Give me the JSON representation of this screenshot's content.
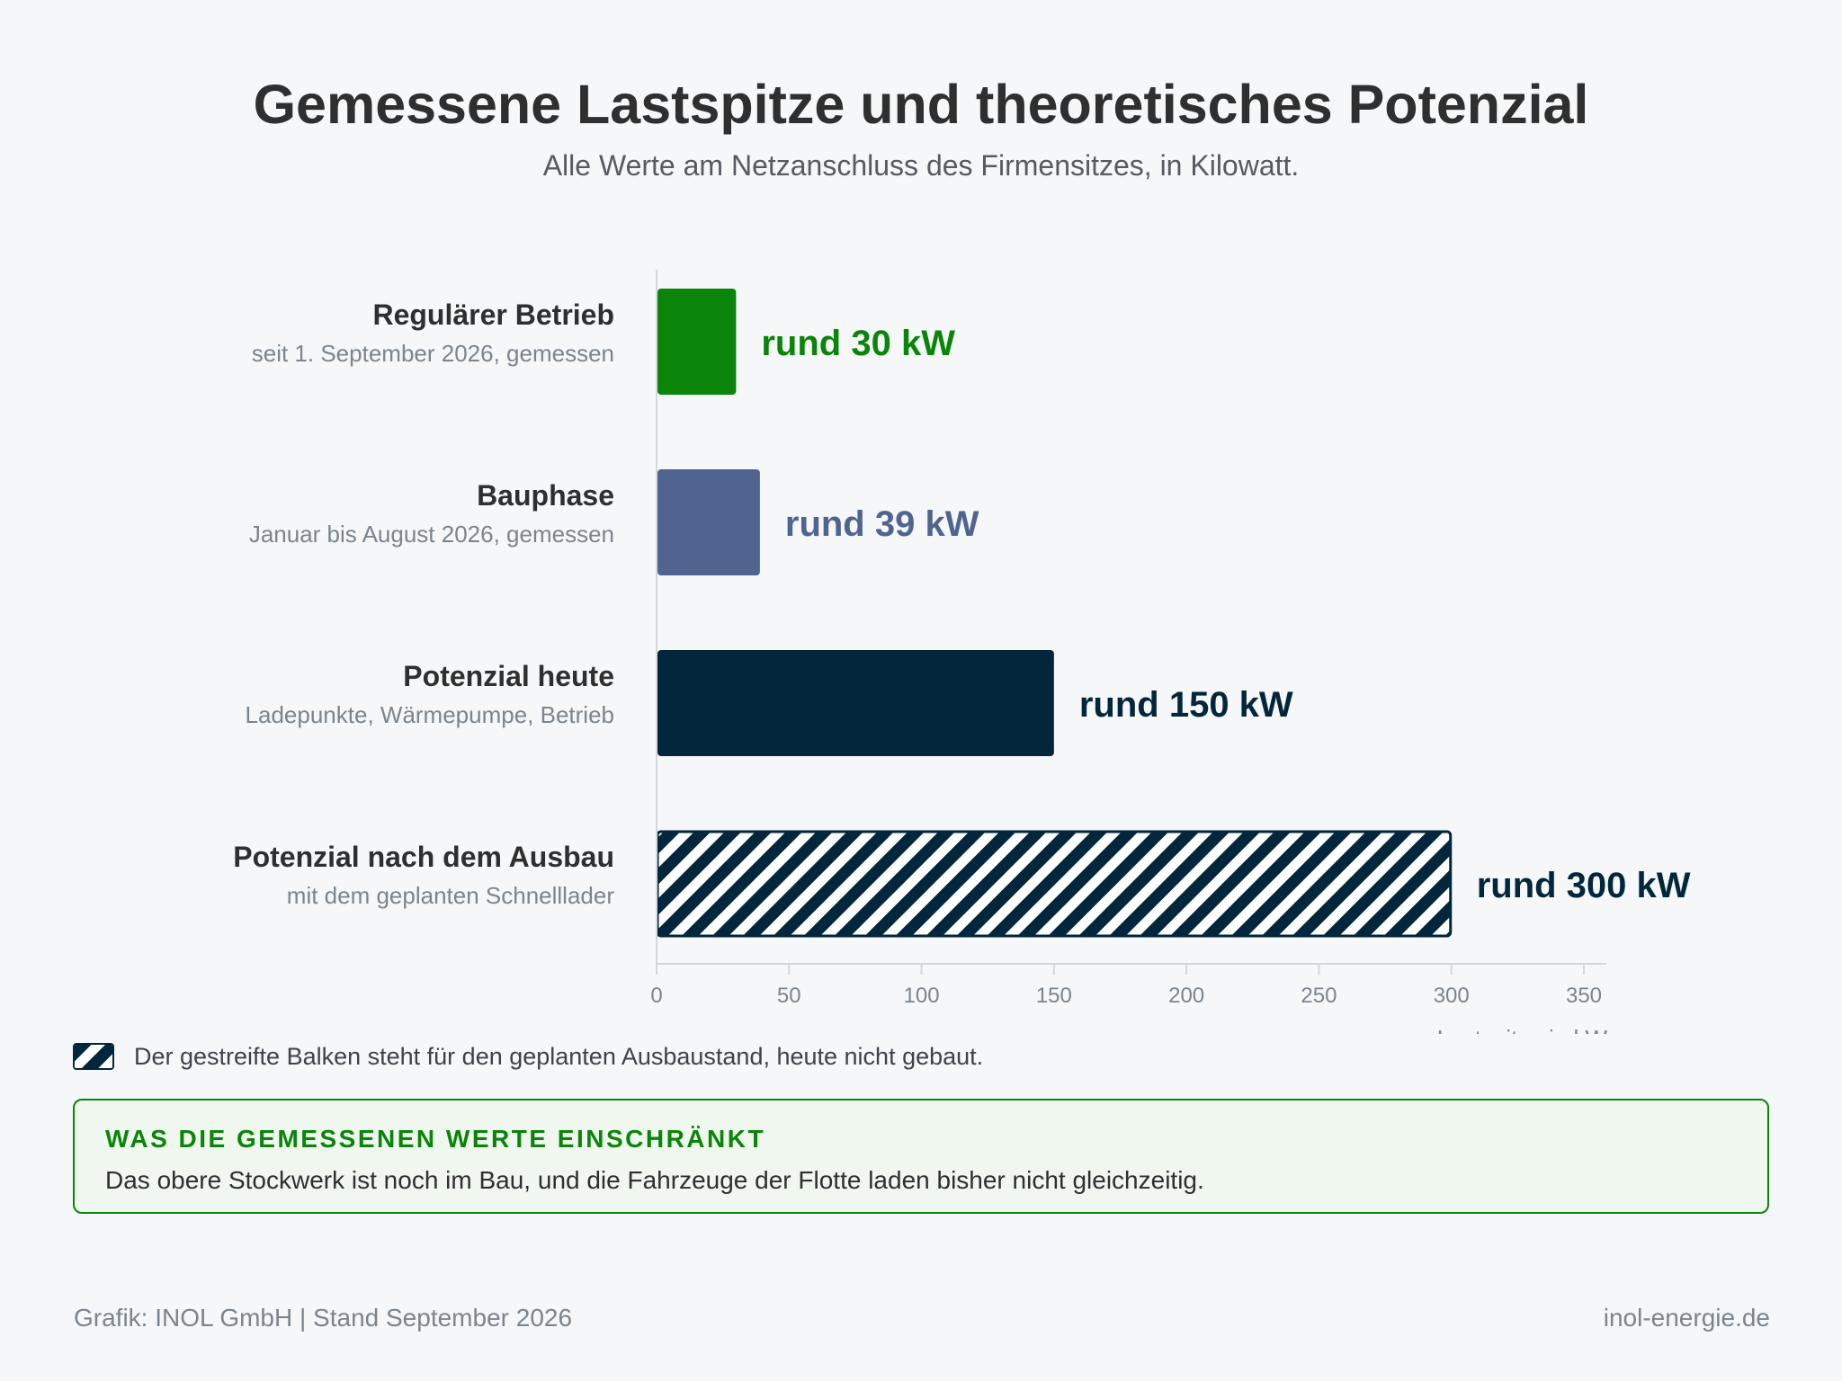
{
  "header": {
    "title": "Gemessene Lastspitze und theoretisches Potenzial",
    "subtitle": "Alle Werte am Netzanschluss des Firmensitzes, in Kilowatt."
  },
  "chart_data": {
    "type": "bar",
    "orientation": "horizontal",
    "categories": [
      "Regulärer Betrieb",
      "Bauphase",
      "Potenzial heute",
      "Potenzial nach dem Ausbau"
    ],
    "category_subtitles": [
      "seit 1. September 2026, gemessen",
      "Januar bis August 2026, gemessen",
      "Ladepunkte, Wärmepumpe, Betrieb",
      "mit dem geplanten Schnelllader"
    ],
    "values": [
      30,
      39,
      150,
      300
    ],
    "value_labels": [
      "rund 30 kW",
      "rund 39 kW",
      "rund 150 kW",
      "rund 300 kW"
    ],
    "colors": [
      "#0a850a",
      "#4f658f",
      "#02273c",
      "#02273c"
    ],
    "hatched": [
      false,
      false,
      false,
      true
    ],
    "xlabel": "Lastspitze in kW",
    "xlim": [
      0,
      350
    ],
    "xticks": [
      0,
      50,
      100,
      150,
      200,
      250,
      300,
      350
    ],
    "grid": false
  },
  "legend": {
    "text": "Der gestreifte Balken steht für den geplanten Ausbaustand, heute nicht gebaut."
  },
  "note": {
    "title": "WAS DIE GEMESSENEN WERTE EINSCHRÄNKT",
    "body": "Das obere Stockwerk ist noch im Bau, und die Fahrzeuge der Flotte laden bisher nicht gleichzeitig."
  },
  "footer": {
    "source": "Grafik: INOL GmbH | Stand September 2026",
    "website": "inol-energie.de"
  }
}
